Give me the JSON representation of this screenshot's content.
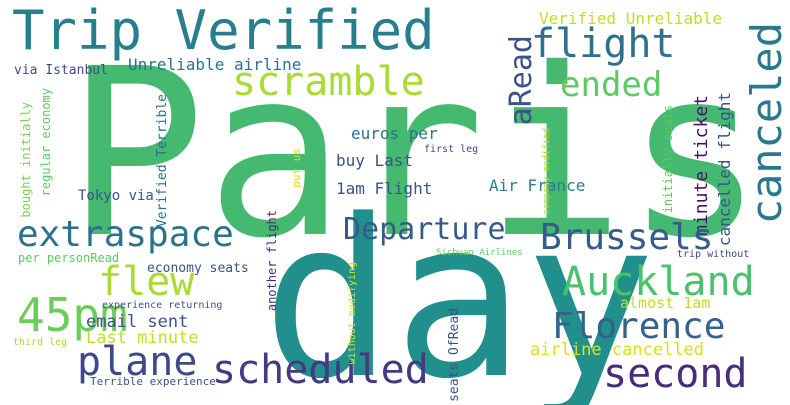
{
  "wordcloud": {
    "words": [
      {
        "text": "Paris",
        "color": "#45b96f"
      },
      {
        "text": "day",
        "color": "#21908c"
      },
      {
        "text": "Trip Verified",
        "color": "#277f8e"
      },
      {
        "text": "flight",
        "color": "#2c728e"
      },
      {
        "text": "scramble",
        "color": "#a8db34"
      },
      {
        "text": "canceled",
        "color": "#2a788e"
      },
      {
        "text": "ended",
        "color": "#5ec962"
      },
      {
        "text": "aRead",
        "color": "#3b528b"
      },
      {
        "text": "Verified Unreliable",
        "color": "#bddf26"
      },
      {
        "text": "Unreliable airline",
        "color": "#2c728e"
      },
      {
        "text": "via Istanbul",
        "color": "#3e4989"
      },
      {
        "text": "regular economy",
        "color": "#5ec962"
      },
      {
        "text": "bought initially",
        "color": "#7ad151"
      },
      {
        "text": "Verified Terrible",
        "color": "#2f6c8e"
      },
      {
        "text": "Tokyo via",
        "color": "#3b528b"
      },
      {
        "text": "euros per",
        "color": "#2c728e"
      },
      {
        "text": "buy Last",
        "color": "#3b528b"
      },
      {
        "text": "1am Flight",
        "color": "#3b528b"
      },
      {
        "text": "Air France",
        "color": "#277f8e"
      },
      {
        "text": "minute ticket",
        "color": "#471164"
      },
      {
        "text": "cancelled flight",
        "color": "#3b528b"
      },
      {
        "text": "initially seats",
        "color": "#5ec962"
      },
      {
        "text": "company modified",
        "color": "#a8db34"
      },
      {
        "text": "first leg",
        "color": "#3e4989"
      },
      {
        "text": "put us",
        "color": "#d8e219"
      },
      {
        "text": "extraspace",
        "color": "#2c728e"
      },
      {
        "text": "Departure",
        "color": "#38598c"
      },
      {
        "text": "Brussels",
        "color": "#375a8c"
      },
      {
        "text": "flew",
        "color": "#a8db34"
      },
      {
        "text": "Auckland",
        "color": "#4ac16d"
      },
      {
        "text": "45pm",
        "color": "#6ccd5a"
      },
      {
        "text": "email sent",
        "color": "#3b528b"
      },
      {
        "text": "Last minute",
        "color": "#bddf26"
      },
      {
        "text": "Florence",
        "color": "#33638d"
      },
      {
        "text": "plane",
        "color": "#3e4989"
      },
      {
        "text": "scheduled",
        "color": "#443983"
      },
      {
        "text": "second",
        "color": "#472d7b"
      },
      {
        "text": "economy seats",
        "color": "#3b528b"
      },
      {
        "text": "almost 1am",
        "color": "#bddf26"
      },
      {
        "text": "airline cancelled",
        "color": "#d8e219"
      },
      {
        "text": "per personRead",
        "color": "#5ec962"
      },
      {
        "text": "another flight",
        "color": "#472d7b"
      },
      {
        "text": "without modifying",
        "color": "#d8e219"
      },
      {
        "text": "seats OfRead",
        "color": "#3b528b"
      },
      {
        "text": "Sichuan Airlines",
        "color": "#5ec962"
      },
      {
        "text": "trip without",
        "color": "#3e4989"
      },
      {
        "text": "experience returning",
        "color": "#3b528b"
      },
      {
        "text": "Terrible experience",
        "color": "#3b528b"
      },
      {
        "text": "third leg",
        "color": "#a8db34"
      }
    ]
  }
}
